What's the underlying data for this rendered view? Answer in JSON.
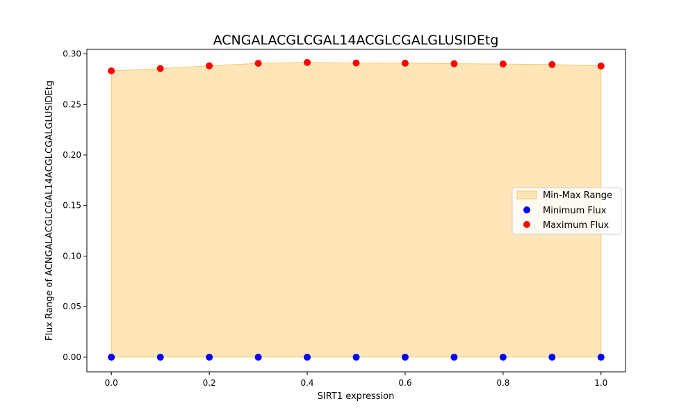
{
  "chart_data": {
    "type": "scatter",
    "title": "ACNGALACGLCGAL14ACGLCGALGLUSIDEtg",
    "xlabel": "SIRT1 expression",
    "ylabel": "Flux Range of ACNGALACGLCGAL14ACGLCGALGLUSIDEtg",
    "xlim": [
      -0.05,
      1.05
    ],
    "ylim": [
      -0.0145,
      0.3045
    ],
    "x_ticks": [
      "0.0",
      "0.2",
      "0.4",
      "0.6",
      "0.8",
      "1.0"
    ],
    "y_ticks": [
      "0.00",
      "0.05",
      "0.10",
      "0.15",
      "0.20",
      "0.25",
      "0.30"
    ],
    "x": [
      0.0,
      0.1,
      0.2,
      0.3,
      0.4,
      0.5,
      0.6,
      0.7,
      0.8,
      0.9,
      1.0
    ],
    "series": [
      {
        "name": "Minimum Flux",
        "color": "#0000ff",
        "values": [
          0,
          0,
          0,
          0,
          0,
          0,
          0,
          0,
          0,
          0,
          0
        ]
      },
      {
        "name": "Maximum Flux",
        "color": "#ff0000",
        "values": [
          0.2832,
          0.2855,
          0.2882,
          0.2907,
          0.2915,
          0.291,
          0.2908,
          0.2903,
          0.29,
          0.2895,
          0.288
        ]
      }
    ],
    "range_fill": {
      "name": "Min-Max Range",
      "color": "#ffe4b5",
      "edge": "#f5c76a"
    },
    "legend": {
      "position": "center-right"
    },
    "grid": false
  }
}
